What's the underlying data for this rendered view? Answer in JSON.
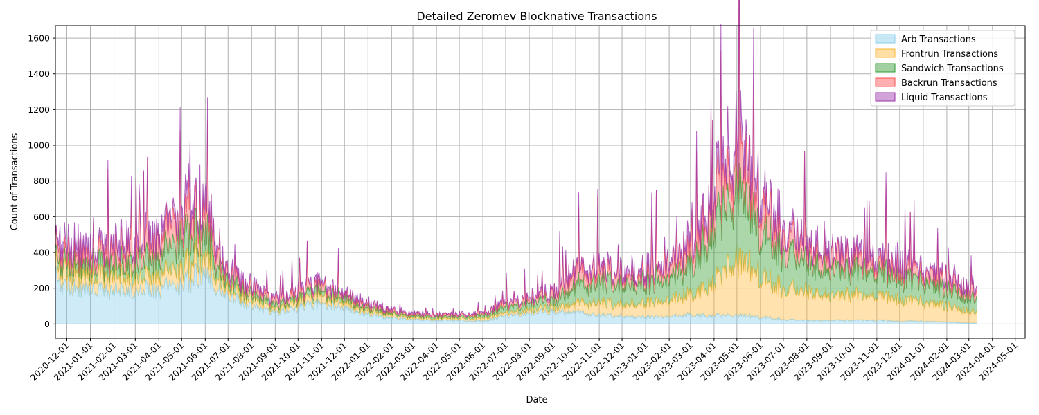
{
  "chart_data": {
    "type": "area",
    "stacked": true,
    "title": "Detailed Zeromev Blocknative Transactions",
    "xlabel": "Date",
    "ylabel": "Count of Transactions",
    "x_range": [
      "2020-11-16",
      "2024-05-14"
    ],
    "ylim": [
      -80,
      1670
    ],
    "y_ticks": [
      0,
      200,
      400,
      600,
      800,
      1000,
      1200,
      1400,
      1600
    ],
    "x_ticks": [
      "2020-12-01",
      "2021-01-01",
      "2021-02-01",
      "2021-03-01",
      "2021-04-01",
      "2021-05-01",
      "2021-06-01",
      "2021-07-01",
      "2021-08-01",
      "2021-09-01",
      "2021-10-01",
      "2021-11-01",
      "2021-12-01",
      "2022-01-01",
      "2022-02-01",
      "2022-03-01",
      "2022-04-01",
      "2022-05-01",
      "2022-06-01",
      "2022-07-01",
      "2022-08-01",
      "2022-09-01",
      "2022-10-01",
      "2022-11-01",
      "2022-12-01",
      "2023-01-01",
      "2023-02-01",
      "2023-03-01",
      "2023-04-01",
      "2023-05-01",
      "2023-06-01",
      "2023-07-01",
      "2023-08-01",
      "2023-09-01",
      "2023-10-01",
      "2023-11-01",
      "2023-12-01",
      "2024-01-01",
      "2024-02-01",
      "2024-03-01",
      "2024-04-01",
      "2024-05-01"
    ],
    "grid": true,
    "legend_position": "top-right",
    "data_note": "approximate monthly stack levels (cumulative tops) read from the chart",
    "x": [
      "2020-11-16",
      "2020-12-01",
      "2021-01-01",
      "2021-02-01",
      "2021-03-01",
      "2021-04-01",
      "2021-05-01",
      "2021-06-01",
      "2021-07-01",
      "2021-08-01",
      "2021-09-01",
      "2021-10-01",
      "2021-11-01",
      "2021-12-01",
      "2022-01-01",
      "2022-02-01",
      "2022-03-01",
      "2022-04-01",
      "2022-05-01",
      "2022-06-01",
      "2022-07-01",
      "2022-08-01",
      "2022-09-01",
      "2022-10-01",
      "2022-11-01",
      "2022-12-01",
      "2023-01-01",
      "2023-02-01",
      "2023-03-01",
      "2023-04-01",
      "2023-05-01",
      "2023-06-01",
      "2023-07-01",
      "2023-08-01",
      "2023-09-01",
      "2023-10-01",
      "2023-11-01",
      "2023-12-01",
      "2024-01-01",
      "2024-02-01",
      "2024-03-01",
      "2024-03-12"
    ],
    "series": [
      {
        "name": "Arb Transactions",
        "color": "#87ceeb",
        "values": [
          260,
          210,
          200,
          190,
          180,
          200,
          230,
          280,
          150,
          100,
          60,
          90,
          110,
          90,
          55,
          35,
          25,
          20,
          20,
          15,
          45,
          60,
          70,
          65,
          50,
          45,
          40,
          40,
          50,
          45,
          50,
          40,
          25,
          20,
          20,
          20,
          20,
          15,
          15,
          10,
          5,
          5
        ]
      },
      {
        "name": "Frontrun Transactions",
        "color": "#ffb732",
        "values": [
          330,
          290,
          280,
          270,
          260,
          280,
          320,
          380,
          190,
          140,
          80,
          120,
          150,
          120,
          75,
          50,
          35,
          30,
          30,
          30,
          60,
          80,
          90,
          110,
          120,
          110,
          120,
          130,
          160,
          230,
          370,
          280,
          200,
          180,
          160,
          160,
          150,
          140,
          120,
          100,
          70,
          70
        ]
      },
      {
        "name": "Sandwich Transactions",
        "color": "#2e9a2e",
        "values": [
          380,
          340,
          330,
          330,
          340,
          380,
          480,
          500,
          230,
          170,
          100,
          140,
          180,
          140,
          90,
          60,
          45,
          40,
          40,
          45,
          90,
          120,
          130,
          200,
          240,
          230,
          230,
          250,
          320,
          520,
          780,
          540,
          400,
          340,
          300,
          300,
          280,
          260,
          230,
          200,
          150,
          150
        ]
      },
      {
        "name": "Backrun Transactions",
        "color": "#ff4d4d",
        "values": [
          440,
          400,
          390,
          410,
          420,
          480,
          600,
          620,
          270,
          200,
          130,
          170,
          210,
          160,
          110,
          70,
          55,
          50,
          50,
          55,
          110,
          140,
          170,
          280,
          300,
          280,
          280,
          320,
          420,
          680,
          950,
          700,
          500,
          420,
          380,
          360,
          330,
          310,
          280,
          250,
          190,
          190
        ]
      },
      {
        "name": "Liquid Transactions",
        "color": "#9932a8",
        "values": [
          480,
          440,
          430,
          450,
          460,
          520,
          650,
          670,
          290,
          220,
          140,
          180,
          230,
          170,
          120,
          80,
          60,
          55,
          55,
          60,
          120,
          150,
          180,
          300,
          320,
          300,
          300,
          350,
          460,
          740,
          1050,
          780,
          540,
          450,
          400,
          390,
          360,
          340,
          300,
          270,
          210,
          210
        ]
      }
    ]
  }
}
